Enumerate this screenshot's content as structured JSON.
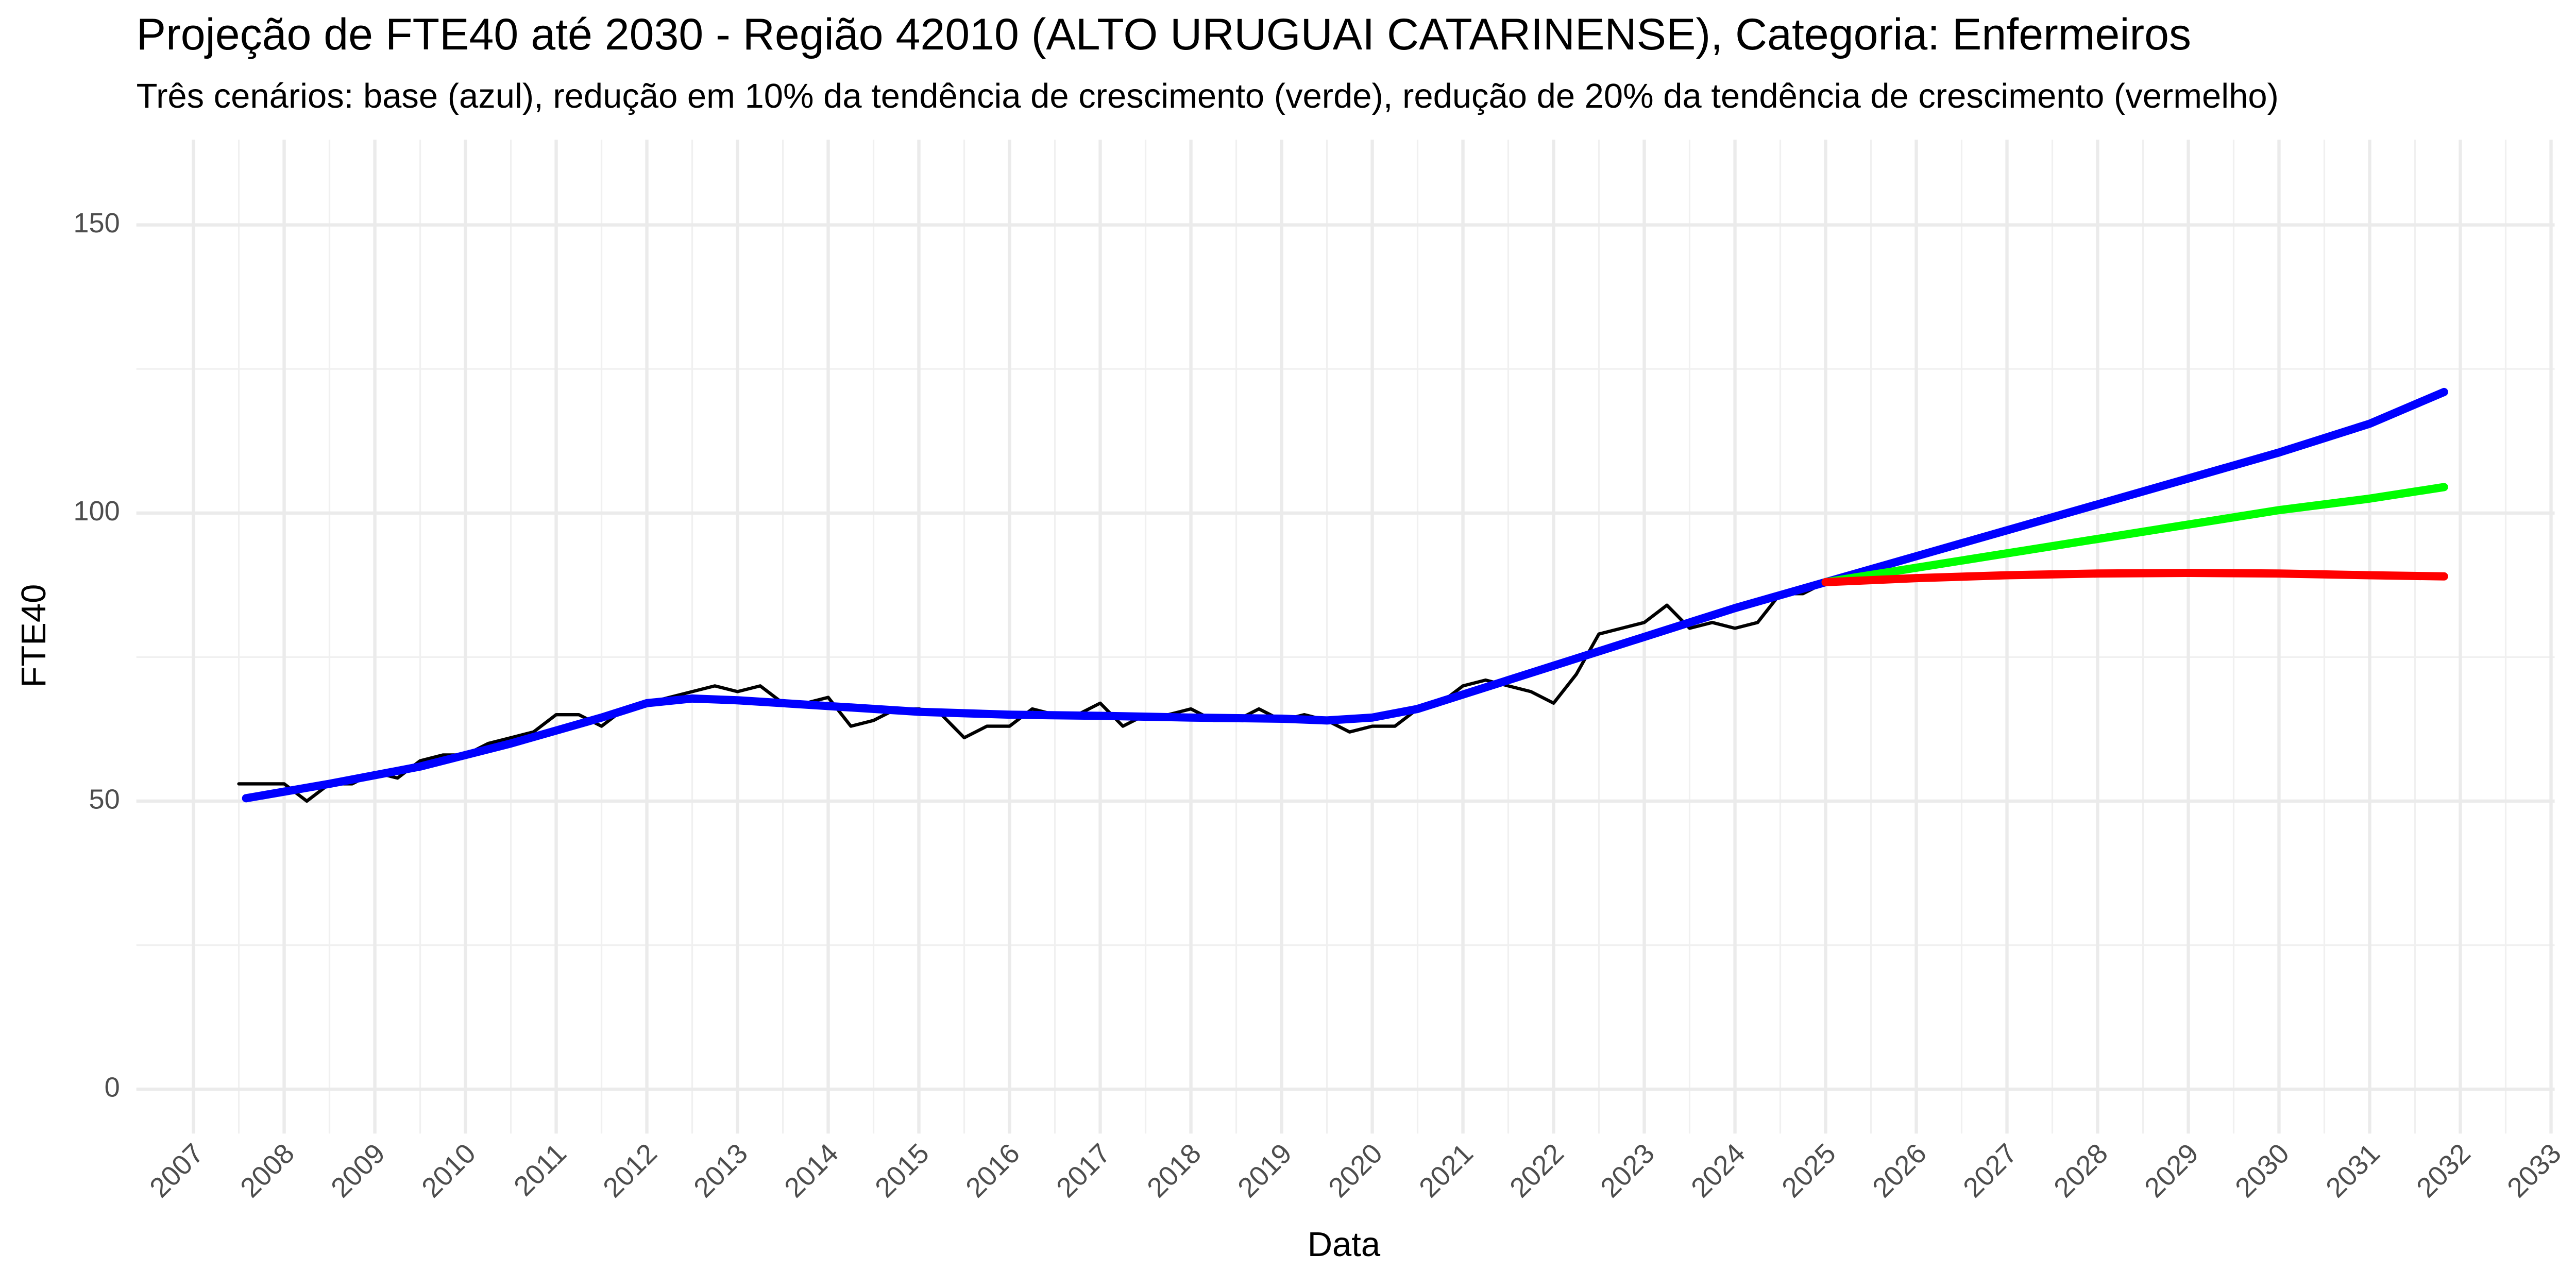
{
  "chart_data": {
    "type": "line",
    "title": "Projeção de FTE40 até 2030 - Região 42010 (ALTO URUGUAI CATARINENSE), Categoria: Enfermeiros",
    "subtitle": "Três cenários: base (azul), redução em 10% da tendência de crescimento (verde), redução de 20% da tendência de crescimento (vermelho)",
    "xlabel": "Data",
    "ylabel": "FTE40",
    "xlim": [
      2006.37,
      2033.04
    ],
    "xticks": [
      2007,
      2008,
      2009,
      2010,
      2011,
      2012,
      2013,
      2014,
      2015,
      2016,
      2017,
      2018,
      2019,
      2020,
      2021,
      2022,
      2023,
      2024,
      2025,
      2026,
      2027,
      2028,
      2029,
      2030,
      2031,
      2032,
      2033
    ],
    "ylim": [
      -7.7,
      164.8
    ],
    "yticks": [
      0,
      50,
      100,
      150
    ],
    "grid": true,
    "minor_grid": true,
    "series": [
      {
        "color": "#000000",
        "width": 2,
        "x": [
          2007.5,
          2007.75,
          2008,
          2008.25,
          2008.5,
          2008.75,
          2009,
          2009.25,
          2009.5,
          2009.75,
          2010,
          2010.25,
          2010.5,
          2010.75,
          2011,
          2011.25,
          2011.5,
          2011.75,
          2012,
          2012.25,
          2012.5,
          2012.75,
          2013,
          2013.25,
          2013.5,
          2013.75,
          2014,
          2014.25,
          2014.5,
          2014.75,
          2015,
          2015.25,
          2015.5,
          2015.75,
          2016,
          2016.25,
          2016.5,
          2016.75,
          2017,
          2017.25,
          2017.5,
          2017.75,
          2018,
          2018.25,
          2018.5,
          2018.75,
          2019,
          2019.25,
          2019.5,
          2019.75,
          2020,
          2020.25,
          2020.5,
          2020.75,
          2021,
          2021.25,
          2021.5,
          2021.75,
          2022,
          2022.25,
          2022.5,
          2022.75,
          2023,
          2023.25,
          2023.5,
          2023.75,
          2024,
          2024.25,
          2024.5,
          2024.75,
          2025
        ],
        "values": [
          53,
          53,
          53,
          50,
          53,
          53,
          55,
          54,
          57,
          58,
          58,
          60,
          61,
          62,
          65,
          65,
          63,
          66,
          67,
          68,
          69,
          70,
          69,
          70,
          67,
          67,
          68,
          63,
          64,
          66,
          66,
          65,
          61,
          63,
          63,
          66,
          65,
          65,
          67,
          63,
          65,
          65,
          66,
          64,
          64,
          66,
          64,
          65,
          64,
          62,
          63,
          63,
          66,
          67,
          70,
          71,
          70,
          69,
          67,
          72,
          79,
          80,
          81,
          84,
          80,
          81,
          80,
          81,
          86,
          86,
          88
        ]
      },
      {
        "color": "#0000ff",
        "width": 5,
        "x": [
          2007.58,
          2008.5,
          2009.5,
          2010.5,
          2011.5,
          2012,
          2012.5,
          2013,
          2014,
          2015,
          2016,
          2017,
          2018,
          2019,
          2019.5,
          2020,
          2020.5,
          2021,
          2022,
          2023,
          2024,
          2025,
          2026,
          2027,
          2028,
          2029,
          2030,
          2031,
          2031.82
        ],
        "values": [
          50.5,
          53,
          56,
          60,
          64.5,
          67,
          67.8,
          67.5,
          66.5,
          65.5,
          65,
          64.8,
          64.5,
          64.3,
          64,
          64.5,
          66,
          68.5,
          73.5,
          78.5,
          83.5,
          88,
          92.5,
          97,
          101.5,
          106,
          110.5,
          115.5,
          121
        ]
      },
      {
        "color": "#00ff00",
        "width": 5,
        "x": [
          2025,
          2026,
          2027,
          2028,
          2029,
          2030,
          2031,
          2031.82
        ],
        "values": [
          88,
          90.5,
          93,
          95.5,
          98,
          100.5,
          102.5,
          104.5
        ]
      },
      {
        "color": "#ff0000",
        "width": 5,
        "x": [
          2025,
          2026,
          2027,
          2028,
          2029,
          2030,
          2031,
          2031.82
        ],
        "values": [
          88,
          88.7,
          89.2,
          89.5,
          89.6,
          89.5,
          89.2,
          89
        ]
      }
    ]
  }
}
